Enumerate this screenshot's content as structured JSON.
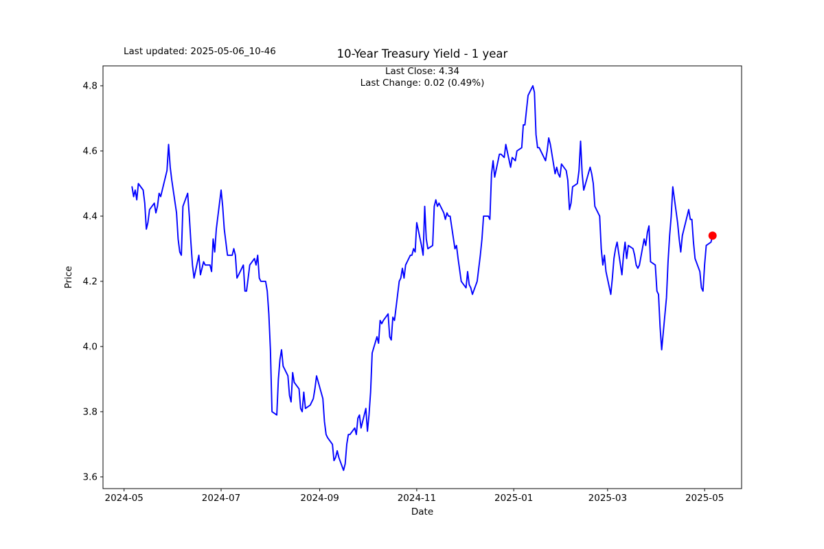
{
  "header": {
    "last_updated": "Last updated: 2025-05-06_10-46",
    "title": "10-Year Treasury Yield - 1 year",
    "subtitle_line1": "Last Close: 4.34",
    "subtitle_line2": "Last Change: 0.02 (0.49%)"
  },
  "axes": {
    "xlabel": "Date",
    "ylabel": "Price"
  },
  "chart_data": {
    "type": "line",
    "title": "10-Year Treasury Yield - 1 year",
    "xlabel": "Date",
    "ylabel": "Price",
    "grid": false,
    "legend": false,
    "line_color": "#0000ff",
    "line_width": 1.9,
    "last_point_marker_color": "#ff0000",
    "last_close": 4.34,
    "last_change": 0.02,
    "last_change_pct": "0.49%",
    "ylim": [
      3.564,
      4.861
    ],
    "yticks": [
      3.6,
      3.8,
      4.0,
      4.2,
      4.4,
      4.6,
      4.8
    ],
    "xtick_labels": [
      "2024-05",
      "2024-07",
      "2024-09",
      "2024-11",
      "2025-01",
      "2025-03",
      "2025-05"
    ],
    "x_margin_fraction": 0.05,
    "series": [
      {
        "name": "10-Year Treasury Yield",
        "dates": [
          "2024-05-06",
          "2024-05-07",
          "2024-05-08",
          "2024-05-09",
          "2024-05-10",
          "2024-05-13",
          "2024-05-14",
          "2024-05-15",
          "2024-05-16",
          "2024-05-17",
          "2024-05-20",
          "2024-05-21",
          "2024-05-22",
          "2024-05-23",
          "2024-05-24",
          "2024-05-28",
          "2024-05-29",
          "2024-05-30",
          "2024-05-31",
          "2024-06-03",
          "2024-06-04",
          "2024-06-05",
          "2024-06-06",
          "2024-06-07",
          "2024-06-10",
          "2024-06-11",
          "2024-06-12",
          "2024-06-13",
          "2024-06-14",
          "2024-06-17",
          "2024-06-18",
          "2024-06-20",
          "2024-06-21",
          "2024-06-24",
          "2024-06-25",
          "2024-06-26",
          "2024-06-27",
          "2024-06-28",
          "2024-07-01",
          "2024-07-02",
          "2024-07-03",
          "2024-07-05",
          "2024-07-08",
          "2024-07-09",
          "2024-07-10",
          "2024-07-11",
          "2024-07-12",
          "2024-07-15",
          "2024-07-16",
          "2024-07-17",
          "2024-07-18",
          "2024-07-19",
          "2024-07-22",
          "2024-07-23",
          "2024-07-24",
          "2024-07-25",
          "2024-07-26",
          "2024-07-29",
          "2024-07-30",
          "2024-07-31",
          "2024-08-01",
          "2024-08-02",
          "2024-08-05",
          "2024-08-06",
          "2024-08-07",
          "2024-08-08",
          "2024-08-09",
          "2024-08-12",
          "2024-08-13",
          "2024-08-14",
          "2024-08-15",
          "2024-08-16",
          "2024-08-19",
          "2024-08-20",
          "2024-08-21",
          "2024-08-22",
          "2024-08-23",
          "2024-08-26",
          "2024-08-27",
          "2024-08-28",
          "2024-08-29",
          "2024-08-30",
          "2024-09-03",
          "2024-09-04",
          "2024-09-05",
          "2024-09-06",
          "2024-09-09",
          "2024-09-10",
          "2024-09-11",
          "2024-09-12",
          "2024-09-13",
          "2024-09-16",
          "2024-09-17",
          "2024-09-18",
          "2024-09-19",
          "2024-09-20",
          "2024-09-23",
          "2024-09-24",
          "2024-09-25",
          "2024-09-26",
          "2024-09-27",
          "2024-09-30",
          "2024-10-01",
          "2024-10-02",
          "2024-10-03",
          "2024-10-04",
          "2024-10-07",
          "2024-10-08",
          "2024-10-09",
          "2024-10-10",
          "2024-10-11",
          "2024-10-14",
          "2024-10-15",
          "2024-10-16",
          "2024-10-17",
          "2024-10-18",
          "2024-10-21",
          "2024-10-22",
          "2024-10-23",
          "2024-10-24",
          "2024-10-25",
          "2024-10-28",
          "2024-10-29",
          "2024-10-30",
          "2024-10-31",
          "2024-11-01",
          "2024-11-04",
          "2024-11-05",
          "2024-11-06",
          "2024-11-07",
          "2024-11-08",
          "2024-11-11",
          "2024-11-12",
          "2024-11-13",
          "2024-11-14",
          "2024-11-15",
          "2024-11-18",
          "2024-11-19",
          "2024-11-20",
          "2024-11-21",
          "2024-11-22",
          "2024-11-25",
          "2024-11-26",
          "2024-11-27",
          "2024-11-29",
          "2024-12-02",
          "2024-12-03",
          "2024-12-04",
          "2024-12-05",
          "2024-12-06",
          "2024-12-09",
          "2024-12-10",
          "2024-12-11",
          "2024-12-12",
          "2024-12-13",
          "2024-12-16",
          "2024-12-17",
          "2024-12-18",
          "2024-12-19",
          "2024-12-20",
          "2024-12-23",
          "2024-12-24",
          "2024-12-26",
          "2024-12-27",
          "2024-12-30",
          "2024-12-31",
          "2025-01-02",
          "2025-01-03",
          "2025-01-06",
          "2025-01-07",
          "2025-01-08",
          "2025-01-10",
          "2025-01-13",
          "2025-01-14",
          "2025-01-15",
          "2025-01-16",
          "2025-01-17",
          "2025-01-21",
          "2025-01-22",
          "2025-01-23",
          "2025-01-24",
          "2025-01-27",
          "2025-01-28",
          "2025-01-29",
          "2025-01-30",
          "2025-01-31",
          "2025-02-03",
          "2025-02-04",
          "2025-02-05",
          "2025-02-06",
          "2025-02-07",
          "2025-02-10",
          "2025-02-11",
          "2025-02-12",
          "2025-02-13",
          "2025-02-14",
          "2025-02-18",
          "2025-02-19",
          "2025-02-20",
          "2025-02-21",
          "2025-02-24",
          "2025-02-25",
          "2025-02-26",
          "2025-02-27",
          "2025-02-28",
          "2025-03-03",
          "2025-03-04",
          "2025-03-05",
          "2025-03-06",
          "2025-03-07",
          "2025-03-10",
          "2025-03-11",
          "2025-03-12",
          "2025-03-13",
          "2025-03-14",
          "2025-03-17",
          "2025-03-18",
          "2025-03-19",
          "2025-03-20",
          "2025-03-21",
          "2025-03-24",
          "2025-03-25",
          "2025-03-26",
          "2025-03-27",
          "2025-03-28",
          "2025-03-31",
          "2025-04-01",
          "2025-04-02",
          "2025-04-03",
          "2025-04-04",
          "2025-04-07",
          "2025-04-08",
          "2025-04-09",
          "2025-04-10",
          "2025-04-11",
          "2025-04-14",
          "2025-04-15",
          "2025-04-16",
          "2025-04-17",
          "2025-04-21",
          "2025-04-22",
          "2025-04-23",
          "2025-04-24",
          "2025-04-25",
          "2025-04-28",
          "2025-04-29",
          "2025-04-30",
          "2025-05-01",
          "2025-05-02",
          "2025-05-05",
          "2025-05-06"
        ],
        "values": [
          4.49,
          4.46,
          4.48,
          4.45,
          4.5,
          4.48,
          4.44,
          4.36,
          4.38,
          4.42,
          4.44,
          4.41,
          4.43,
          4.47,
          4.46,
          4.54,
          4.62,
          4.55,
          4.51,
          4.41,
          4.33,
          4.29,
          4.28,
          4.43,
          4.47,
          4.4,
          4.32,
          4.25,
          4.21,
          4.28,
          4.22,
          4.26,
          4.25,
          4.25,
          4.23,
          4.33,
          4.29,
          4.36,
          4.48,
          4.43,
          4.36,
          4.28,
          4.28,
          4.3,
          4.28,
          4.21,
          4.22,
          4.25,
          4.17,
          4.17,
          4.21,
          4.25,
          4.27,
          4.25,
          4.28,
          4.21,
          4.2,
          4.2,
          4.17,
          4.1,
          3.99,
          3.8,
          3.79,
          3.9,
          3.96,
          3.99,
          3.94,
          3.91,
          3.85,
          3.83,
          3.92,
          3.89,
          3.87,
          3.81,
          3.8,
          3.86,
          3.81,
          3.82,
          3.83,
          3.84,
          3.87,
          3.91,
          3.84,
          3.77,
          3.73,
          3.72,
          3.7,
          3.65,
          3.66,
          3.68,
          3.66,
          3.62,
          3.64,
          3.7,
          3.73,
          3.73,
          3.75,
          3.73,
          3.78,
          3.79,
          3.75,
          3.81,
          3.74,
          3.79,
          3.86,
          3.98,
          4.03,
          4.01,
          4.08,
          4.07,
          4.08,
          4.1,
          4.03,
          4.02,
          4.09,
          4.08,
          4.2,
          4.21,
          4.24,
          4.21,
          4.25,
          4.28,
          4.28,
          4.3,
          4.29,
          4.38,
          4.31,
          4.28,
          4.43,
          4.33,
          4.3,
          4.31,
          4.43,
          4.45,
          4.43,
          4.44,
          4.41,
          4.39,
          4.41,
          4.4,
          4.4,
          4.3,
          4.31,
          4.27,
          4.2,
          4.18,
          4.23,
          4.19,
          4.18,
          4.16,
          4.2,
          4.24,
          4.28,
          4.33,
          4.4,
          4.4,
          4.39,
          4.53,
          4.57,
          4.52,
          4.59,
          4.59,
          4.58,
          4.62,
          4.55,
          4.58,
          4.57,
          4.6,
          4.61,
          4.68,
          4.68,
          4.77,
          4.8,
          4.78,
          4.65,
          4.61,
          4.61,
          4.57,
          4.6,
          4.64,
          4.62,
          4.53,
          4.55,
          4.53,
          4.52,
          4.56,
          4.54,
          4.51,
          4.42,
          4.44,
          4.49,
          4.5,
          4.54,
          4.63,
          4.53,
          4.48,
          4.55,
          4.53,
          4.5,
          4.43,
          4.4,
          4.3,
          4.25,
          4.28,
          4.23,
          4.16,
          4.21,
          4.27,
          4.3,
          4.32,
          4.22,
          4.28,
          4.32,
          4.27,
          4.31,
          4.3,
          4.28,
          4.25,
          4.24,
          4.25,
          4.33,
          4.31,
          4.35,
          4.37,
          4.26,
          4.25,
          4.17,
          4.16,
          4.06,
          3.99,
          4.15,
          4.26,
          4.34,
          4.4,
          4.49,
          4.38,
          4.33,
          4.29,
          4.34,
          4.42,
          4.39,
          4.39,
          4.32,
          4.27,
          4.23,
          4.18,
          4.17,
          4.25,
          4.31,
          4.32,
          4.34
        ]
      }
    ]
  }
}
